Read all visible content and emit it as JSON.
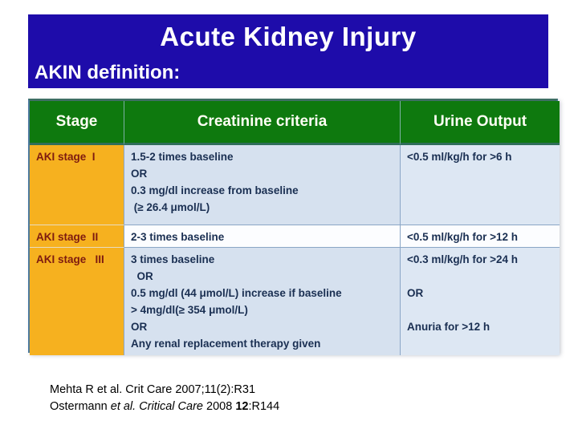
{
  "slide": {
    "title": "Acute Kidney Injury",
    "subtitle": "AKIN definition:"
  },
  "table": {
    "headers": [
      "Stage",
      "Creatinine criteria",
      "Urine Output"
    ],
    "rows": [
      {
        "stage": "AKI stage  I",
        "creatinine": "1.5-2 times baseline\nOR\n0.3 mg/dl increase from baseline\n (≥ 26.4 μmol/L)",
        "urine": "<0.5 ml/kg/h for >6 h"
      },
      {
        "stage": "AKI stage  II",
        "creatinine": "2-3 times baseline",
        "urine": "<0.5 ml/kg/h for >12 h"
      },
      {
        "stage": "AKI stage   III",
        "creatinine": "3 times baseline\n  OR\n0.5 mg/dl (44 μmol/L) increase if baseline\n> 4mg/dl(≥ 354 μmol/L)\nOR\nAny renal replacement therapy given",
        "urine": "<0.3 ml/kg/h for >24 h\n\nOR\n\nAnuria for >12 h"
      }
    ]
  },
  "citations": {
    "line1": "Mehta R et al. Crit Care 2007;11(2):R31",
    "line2": {
      "pre": "Ostermann ",
      "italic": "et al. Critical Care",
      "mid": " 2008 ",
      "bold": "12",
      "post": ":R144"
    }
  },
  "colors": {
    "title_bar_blue": "#1e0caa",
    "title_text": "#ffffff",
    "header_green": "#0e790e",
    "header_text": "#fffff4",
    "stage_orange": "#f6b11f",
    "stage_text_maroon": "#7e1b10",
    "body_cell_blue": "#d6e1ef",
    "body_cell_light": "#fcfdff",
    "body_text_navy": "#1a2f52",
    "table_border": "#4d7a9e"
  }
}
